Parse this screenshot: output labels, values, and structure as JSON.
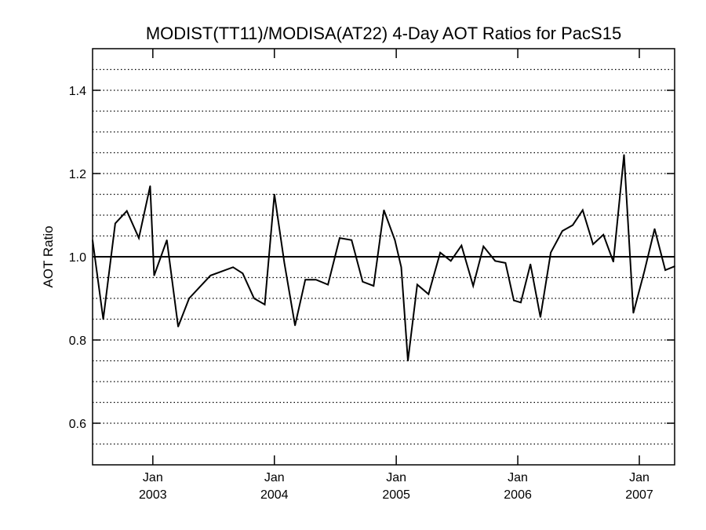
{
  "chart_data": {
    "type": "line",
    "title": "MODIST(TT11)/MODISA(AT22) 4-Day AOT Ratios for PacS15",
    "xlabel": "",
    "ylabel": "AOT Ratio",
    "ylim": [
      0.5,
      1.5
    ],
    "xlim": [
      "2002-07-04",
      "2007-04-17"
    ],
    "y_ticks": [
      0.6,
      0.8,
      1.0,
      1.2,
      1.4
    ],
    "y_tick_labels": [
      "0.6",
      "0.8",
      "1.0",
      "1.2",
      "1.4"
    ],
    "x_ticks": [
      {
        "date": "2003-01-01",
        "month": "Jan",
        "year": "2003"
      },
      {
        "date": "2004-01-01",
        "month": "Jan",
        "year": "2004"
      },
      {
        "date": "2005-01-01",
        "month": "Jan",
        "year": "2005"
      },
      {
        "date": "2006-01-01",
        "month": "Jan",
        "year": "2006"
      },
      {
        "date": "2007-01-01",
        "month": "Jan",
        "year": "2007"
      }
    ],
    "gridlines": {
      "style": "dotted",
      "y_values": [
        0.55,
        0.6,
        0.65,
        0.7,
        0.75,
        0.8,
        0.85,
        0.9,
        0.95,
        1.05,
        1.1,
        1.15,
        1.2,
        1.25,
        1.3,
        1.35,
        1.4,
        1.45
      ]
    },
    "reference_line": 1.0,
    "grid": true,
    "legend": "none",
    "colors": {
      "line": "#000000",
      "grid": "#000000",
      "background": "#ffffff"
    },
    "series": [
      {
        "x": [
          "2002-07-04",
          "2002-08-05",
          "2002-09-10",
          "2002-10-15",
          "2002-11-20",
          "2002-12-24",
          "2003-01-05",
          "2003-02-12",
          "2003-03-18",
          "2003-04-20",
          "2003-06-23",
          "2003-08-30",
          "2003-09-28",
          "2003-11-01",
          "2003-12-03",
          "2004-01-01",
          "2004-01-31",
          "2004-03-03",
          "2004-04-03",
          "2004-05-05",
          "2004-06-10",
          "2004-07-15",
          "2004-08-20",
          "2004-09-22",
          "2004-10-25",
          "2004-11-25",
          "2004-12-28",
          "2005-01-16",
          "2005-02-05",
          "2005-03-05",
          "2005-04-08",
          "2005-05-13",
          "2005-06-14",
          "2005-07-16",
          "2005-08-20",
          "2005-09-20",
          "2005-10-25",
          "2005-11-25",
          "2005-12-20",
          "2006-01-10",
          "2006-02-08",
          "2006-03-10",
          "2006-04-10",
          "2006-05-15",
          "2006-06-15",
          "2006-07-15",
          "2006-08-15",
          "2006-09-15",
          "2006-10-15",
          "2006-11-16",
          "2006-12-14",
          "2007-01-16",
          "2007-02-16",
          "2007-03-20",
          "2007-04-17"
        ],
        "y": [
          1.04,
          0.85,
          1.08,
          1.11,
          1.045,
          1.17,
          0.955,
          1.04,
          0.832,
          0.9,
          0.955,
          0.975,
          0.96,
          0.9,
          0.885,
          1.15,
          0.985,
          0.835,
          0.945,
          0.945,
          0.933,
          1.045,
          1.04,
          0.94,
          0.93,
          1.112,
          1.04,
          0.975,
          0.75,
          0.933,
          0.91,
          1.01,
          0.99,
          1.027,
          0.93,
          1.025,
          0.99,
          0.985,
          0.895,
          0.89,
          0.982,
          0.855,
          1.01,
          1.062,
          1.076,
          1.112,
          1.03,
          1.053,
          0.988,
          1.245,
          0.865,
          0.965,
          1.067,
          0.968,
          0.977
        ]
      }
    ]
  }
}
